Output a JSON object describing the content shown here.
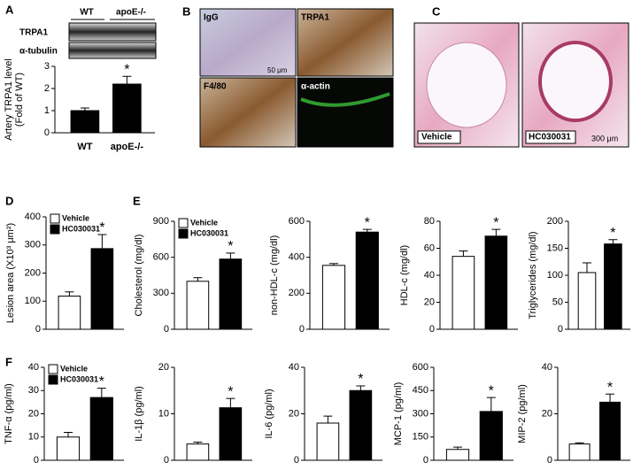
{
  "panels": {
    "A": {
      "letter": "A",
      "lanes": [
        "WT",
        "apoE-/-"
      ],
      "rows": [
        "TRPA1",
        "α-tubulin"
      ]
    },
    "B": {
      "letter": "B",
      "images": [
        "IgG",
        "TRPA1",
        "F4/80",
        "α-actin"
      ],
      "scale": "50 μm"
    },
    "C": {
      "letter": "C",
      "images": [
        "Vehicle",
        "HC030031"
      ],
      "scale": "300 μm"
    }
  },
  "chart_data": [
    {
      "type": "bar",
      "ylabel": [
        "Artery TRPA1 level",
        "(Fold of WT)"
      ],
      "categories": [
        "WT",
        "apoE-/-"
      ],
      "values": [
        1.0,
        2.2
      ],
      "errors": [
        0.12,
        0.35
      ],
      "colors": [
        "#000000",
        "#000000"
      ],
      "annotation": "*",
      "ylim": [
        0,
        3
      ],
      "yticks": [
        0,
        1,
        2,
        3
      ]
    },
    {
      "type": "bar",
      "panel": "D",
      "ylabel": [
        "Lesion area (X10³ μm²)"
      ],
      "legend": [
        "Vehicle",
        "HC030031"
      ],
      "values": [
        118,
        287
      ],
      "errors": [
        15,
        50
      ],
      "colors": [
        "#ffffff",
        "#000000"
      ],
      "annotation": "*",
      "ylim": [
        0,
        400
      ],
      "yticks": [
        0,
        100,
        200,
        300,
        400
      ]
    },
    {
      "type": "bar",
      "panel": "E",
      "ylabel": [
        "Cholesterol (mg/dl)"
      ],
      "legend": [
        "Vehicle",
        "HC030031"
      ],
      "values": [
        400,
        585
      ],
      "errors": [
        30,
        50
      ],
      "colors": [
        "#ffffff",
        "#000000"
      ],
      "annotation": "*",
      "ylim": [
        0,
        900
      ],
      "yticks": [
        0,
        300,
        600,
        900
      ]
    },
    {
      "type": "bar",
      "ylabel": [
        "non-HDL-c (mg/dl)"
      ],
      "values": [
        355,
        540
      ],
      "errors": [
        10,
        15
      ],
      "colors": [
        "#ffffff",
        "#000000"
      ],
      "annotation": "*",
      "ylim": [
        0,
        600
      ],
      "yticks": [
        0,
        200,
        400,
        600
      ]
    },
    {
      "type": "bar",
      "ylabel": [
        "HDL-c (mg/dl)"
      ],
      "values": [
        54,
        69
      ],
      "errors": [
        4,
        5
      ],
      "colors": [
        "#ffffff",
        "#000000"
      ],
      "annotation": "*",
      "ylim": [
        0,
        80
      ],
      "yticks": [
        0,
        20,
        40,
        60,
        80
      ]
    },
    {
      "type": "bar",
      "ylabel": [
        "Triglycerides (mg/dl)"
      ],
      "values": [
        105,
        158
      ],
      "errors": [
        18,
        8
      ],
      "colors": [
        "#ffffff",
        "#000000"
      ],
      "annotation": "*",
      "ylim": [
        0,
        200
      ],
      "yticks": [
        0,
        50,
        100,
        150,
        200
      ]
    },
    {
      "type": "bar",
      "panel": "F",
      "ylabel": [
        "TNF-α (pg/ml)"
      ],
      "legend": [
        "Vehicle",
        "HC030031"
      ],
      "values": [
        10,
        27
      ],
      "errors": [
        2,
        4
      ],
      "colors": [
        "#ffffff",
        "#000000"
      ],
      "annotation": "*",
      "ylim": [
        0,
        40
      ],
      "yticks": [
        0,
        10,
        20,
        30,
        40
      ]
    },
    {
      "type": "bar",
      "ylabel": [
        "IL-1β (pg/ml)"
      ],
      "values": [
        3.5,
        11.3
      ],
      "errors": [
        0.4,
        2
      ],
      "colors": [
        "#ffffff",
        "#000000"
      ],
      "annotation": "*",
      "ylim": [
        0,
        20
      ],
      "yticks": [
        0,
        10,
        20
      ]
    },
    {
      "type": "bar",
      "ylabel": [
        "IL-6 (pg/ml)"
      ],
      "values": [
        16,
        30
      ],
      "errors": [
        3,
        2
      ],
      "colors": [
        "#ffffff",
        "#000000"
      ],
      "annotation": "*",
      "ylim": [
        0,
        40
      ],
      "yticks": [
        0,
        20,
        40
      ]
    },
    {
      "type": "bar",
      "ylabel": [
        "MCP-1 (pg/ml)"
      ],
      "values": [
        70,
        315
      ],
      "errors": [
        15,
        90
      ],
      "colors": [
        "#ffffff",
        "#000000"
      ],
      "annotation": "*",
      "ylim": [
        0,
        600
      ],
      "yticks": [
        0,
        150,
        300,
        450,
        600
      ]
    },
    {
      "type": "bar",
      "ylabel": [
        "MIP-2 (pg/ml)"
      ],
      "values": [
        7,
        25
      ],
      "errors": [
        0.5,
        3.5
      ],
      "colors": [
        "#ffffff",
        "#000000"
      ],
      "annotation": "*",
      "ylim": [
        0,
        40
      ],
      "yticks": [
        0,
        20,
        40
      ]
    }
  ]
}
